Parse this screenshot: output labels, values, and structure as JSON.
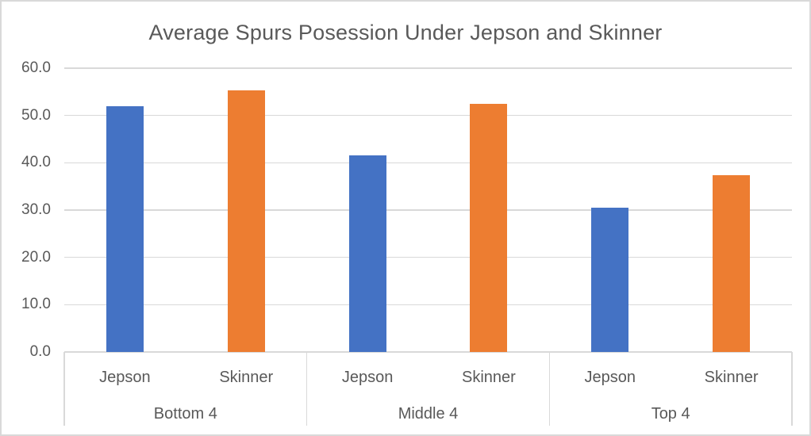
{
  "chart_data": {
    "type": "bar",
    "title": "Average Spurs Posession Under Jepson and Skinner",
    "categories": [
      "Bottom 4",
      "Middle 4",
      "Top 4"
    ],
    "series": [
      {
        "name": "Jepson",
        "color": "#4472C4",
        "values": [
          52.0,
          41.6,
          30.5
        ]
      },
      {
        "name": "Skinner",
        "color": "#ED7D31",
        "values": [
          55.3,
          52.4,
          37.4
        ]
      }
    ],
    "xlabel": "",
    "ylabel": "",
    "ylim": [
      0,
      60
    ],
    "yticks": [
      {
        "label": "0.0",
        "value": 0
      },
      {
        "label": "10.0",
        "value": 10
      },
      {
        "label": "20.0",
        "value": 20
      },
      {
        "label": "30.0",
        "value": 30
      },
      {
        "label": "40.0",
        "value": 40
      },
      {
        "label": "50.0",
        "value": 50
      },
      {
        "label": "60.0",
        "value": 60
      }
    ],
    "grid": true,
    "legend_position": "none"
  },
  "colors": {
    "background": "#FFFFFF",
    "border": "#D9D9D9",
    "gridline": "#D9D9D9",
    "axis_line": "#D9D9D9",
    "divider": "#D9D9D9",
    "text": "#595959",
    "series_blue": "#4472C4",
    "series_orange": "#ED7D31"
  }
}
